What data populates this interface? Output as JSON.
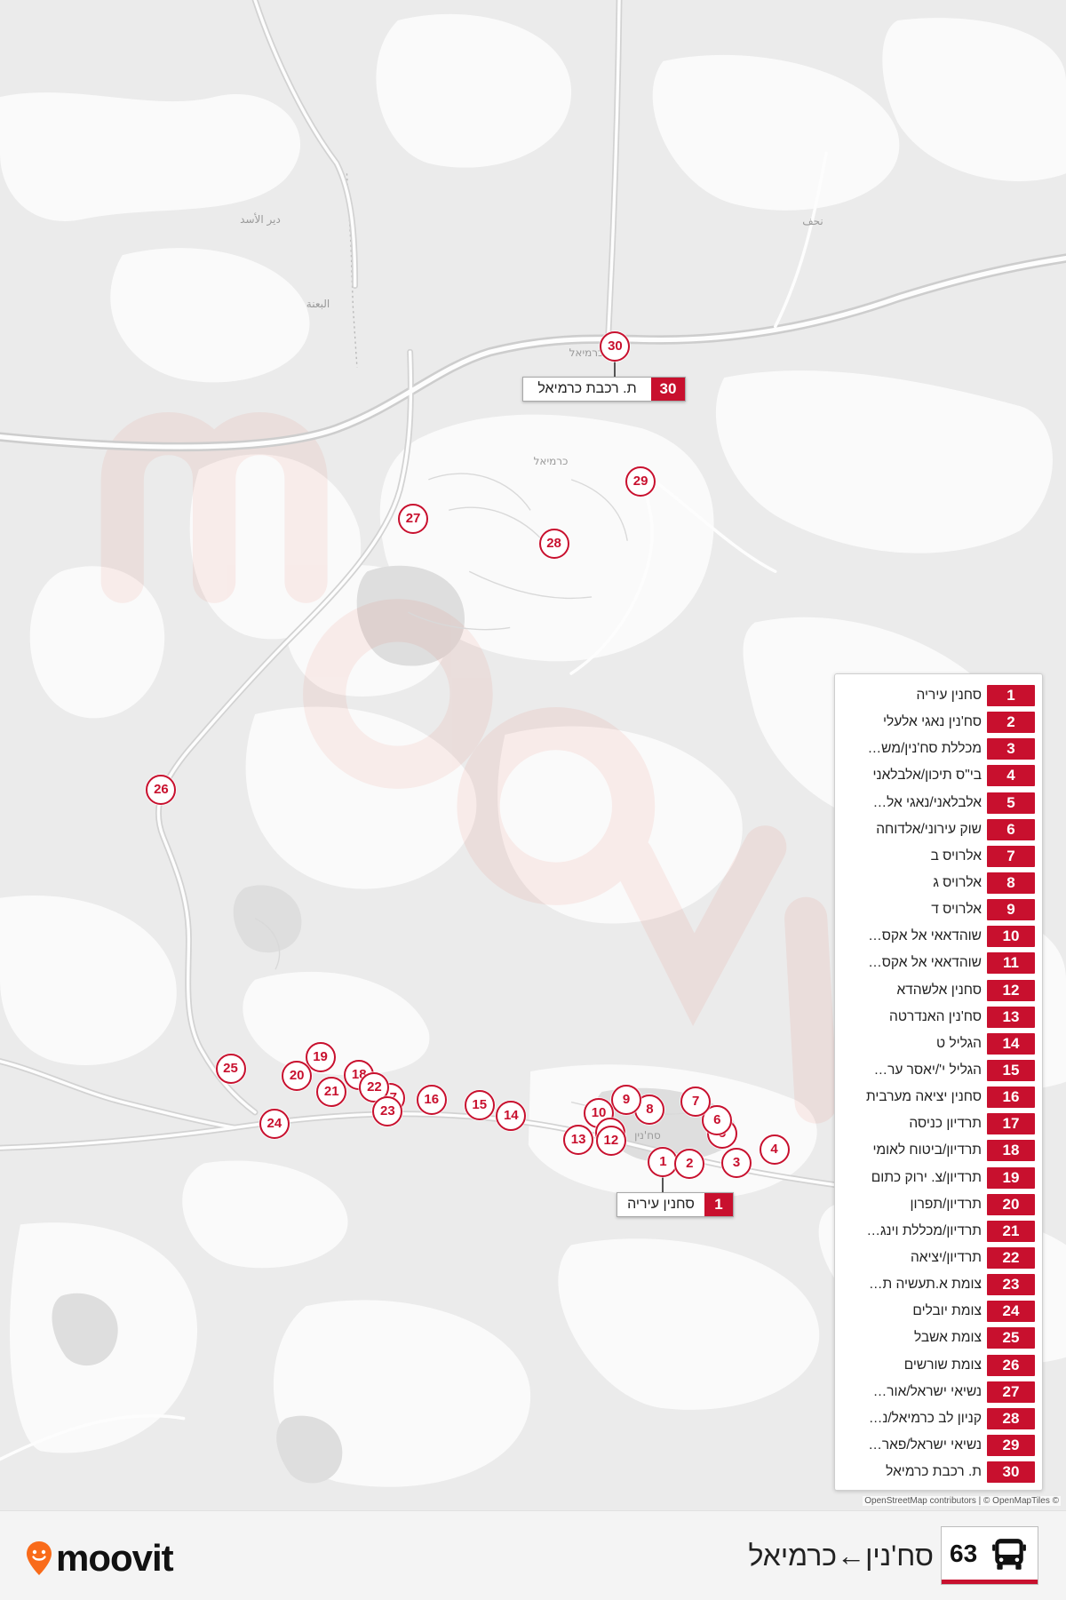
{
  "map": {
    "place_labels": [
      "دير الأسد",
      "البعنة",
      "نحف",
      "כרמיאל",
      "כרמיאל",
      "סח'נין"
    ],
    "attribution": "OpenStreetMap contributors | © OpenMapTiles ©"
  },
  "stops": [
    {
      "number": "1",
      "name": "סחנין עיריה"
    },
    {
      "number": "2",
      "name": "סח'נין נאגי אלעלי"
    },
    {
      "number": "3",
      "name": "מכללת סח'נין/מש…"
    },
    {
      "number": "4",
      "name": "בי\"ס תיכון/אלבלאני"
    },
    {
      "number": "5",
      "name": "אלבלאני/נאגי אל…"
    },
    {
      "number": "6",
      "name": "שוק עירוני/אלדוחה"
    },
    {
      "number": "7",
      "name": "אלרויס ב"
    },
    {
      "number": "8",
      "name": "אלרויס ג"
    },
    {
      "number": "9",
      "name": "אלרויס ד"
    },
    {
      "number": "10",
      "name": "שוהדאאי אל אקס…"
    },
    {
      "number": "11",
      "name": "שוהדאאי אל אקס…"
    },
    {
      "number": "12",
      "name": "סחנין אלשהדא"
    },
    {
      "number": "13",
      "name": "סח'נין האנדרטה"
    },
    {
      "number": "14",
      "name": "הגליל ט"
    },
    {
      "number": "15",
      "name": "הגליל י'/יאסר ער…"
    },
    {
      "number": "16",
      "name": "סחנין יציאה מערבית"
    },
    {
      "number": "17",
      "name": "תרדיון כניסה"
    },
    {
      "number": "18",
      "name": "תרדיון/ביטוח לאומי"
    },
    {
      "number": "19",
      "name": "תרדיון/צ. ירוק כתום"
    },
    {
      "number": "20",
      "name": "תרדיון/תפרון"
    },
    {
      "number": "21",
      "name": "תרדיון/מכללת וינג…"
    },
    {
      "number": "22",
      "name": "תרדיון/יציאה"
    },
    {
      "number": "23",
      "name": "צומת א.תעשיה ת…"
    },
    {
      "number": "24",
      "name": "צומת יובלים"
    },
    {
      "number": "25",
      "name": "צומת אשבל"
    },
    {
      "number": "26",
      "name": "צומת שורשים"
    },
    {
      "number": "27",
      "name": "נשיאי ישראל/אור…"
    },
    {
      "number": "28",
      "name": "קניון לב כרמיאל/נ…"
    },
    {
      "number": "29",
      "name": "נשיאי ישראל/פאר…"
    },
    {
      "number": "30",
      "name": "ת. רכבת כרמיאל"
    }
  ],
  "route": {
    "number": "63",
    "title": "סח'נין←כרמיאל",
    "icon": "bus-icon"
  },
  "brand": {
    "logo_text": "moovit",
    "logo_icon": "moovit-pin-icon"
  },
  "colors": {
    "accent": "#c8102e",
    "brand": "#f96b1a"
  }
}
